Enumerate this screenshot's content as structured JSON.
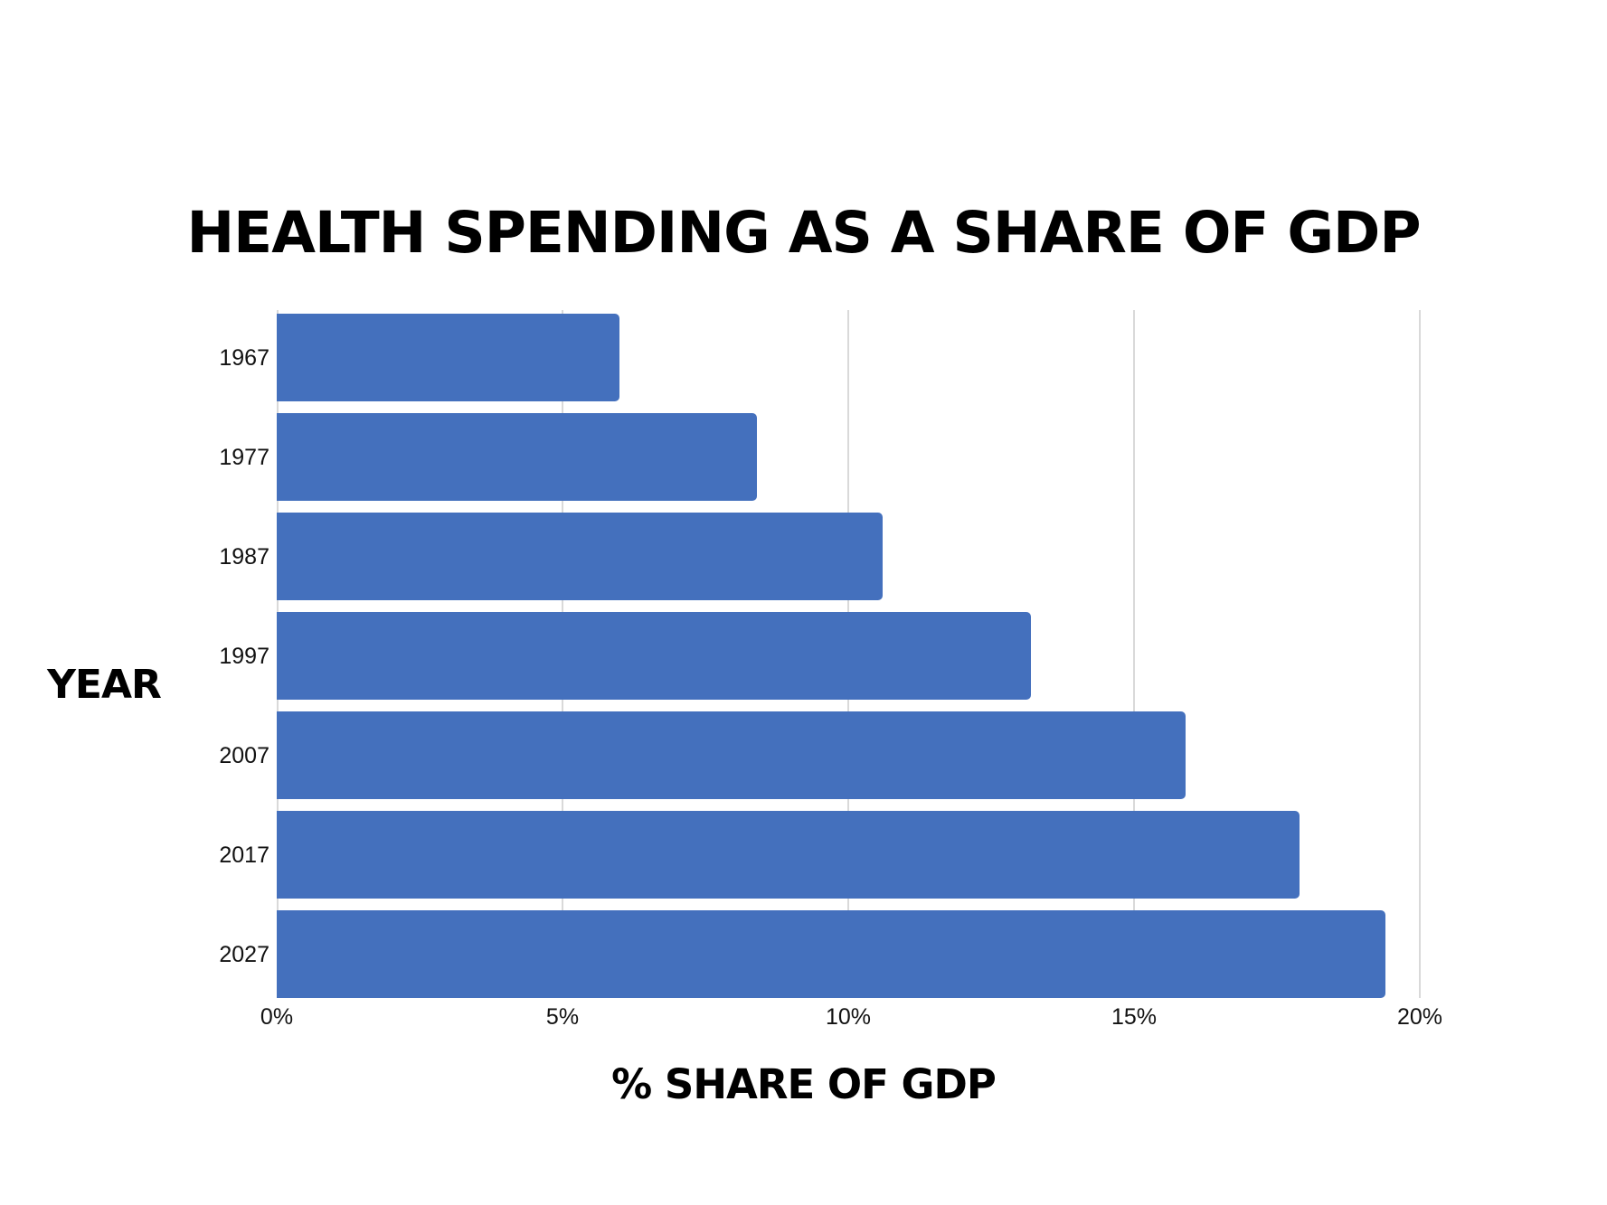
{
  "chart_data": {
    "type": "bar",
    "orientation": "horizontal",
    "title": "HEALTH SPENDING AS A SHARE OF GDP",
    "xlabel": "% SHARE OF GDP",
    "ylabel": "YEAR",
    "categories": [
      "1967",
      "1977",
      "1987",
      "1997",
      "2007",
      "2017",
      "2027"
    ],
    "values": [
      6.0,
      8.4,
      10.6,
      13.2,
      15.9,
      17.9,
      19.4
    ],
    "unit": "%",
    "xlim": [
      0,
      20
    ],
    "x_ticks": [
      "0%",
      "5%",
      "10%",
      "15%",
      "20%"
    ],
    "x_tick_values": [
      0,
      5,
      10,
      15,
      20
    ],
    "grid": "vertical",
    "legend": "none",
    "bar_color": "#4470bd",
    "grid_color": "#d9d9d9"
  }
}
